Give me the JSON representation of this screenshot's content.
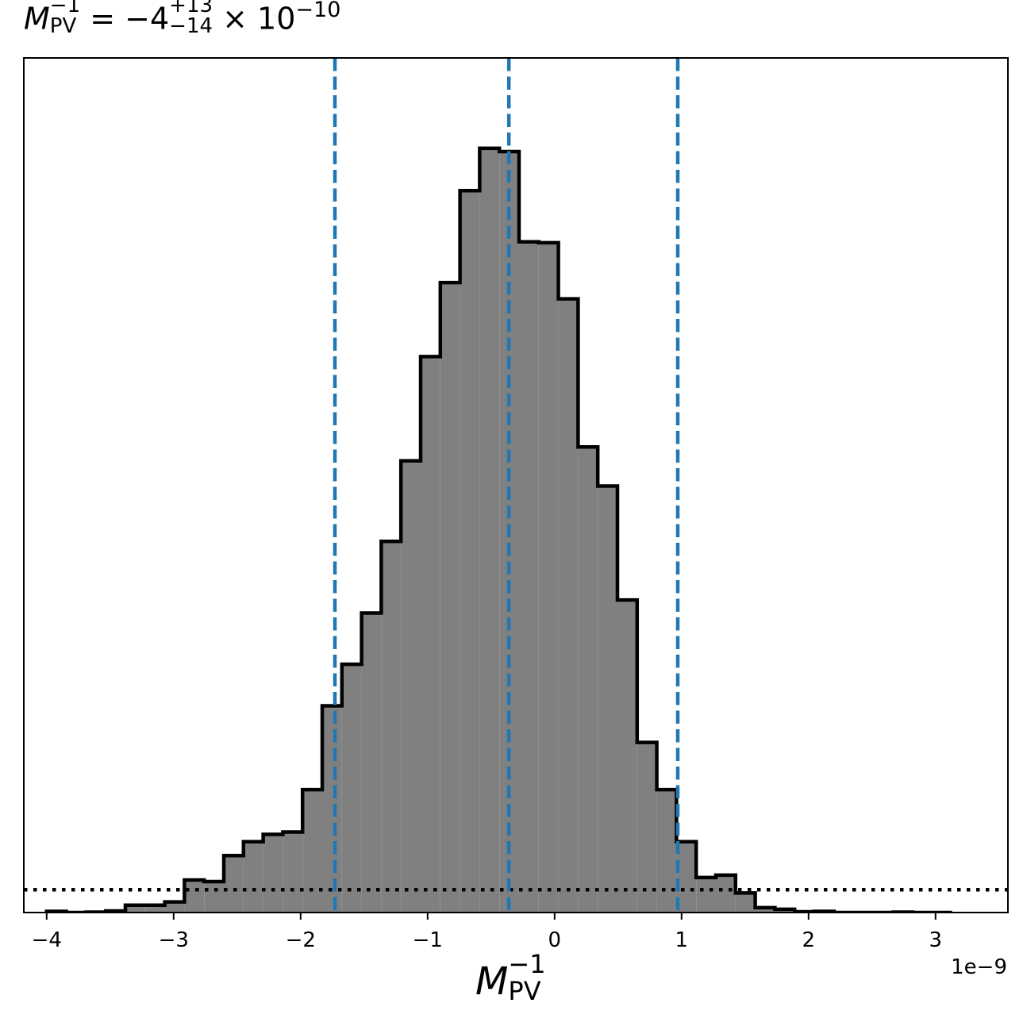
{
  "chart_data": {
    "type": "histogram",
    "title": {
      "symbol": "M",
      "symbol_sub": "PV",
      "symbol_sup": "−1",
      "equals": " = ",
      "value": "−4",
      "upper_err": "+13",
      "lower_err": "−14",
      "times": " × 10",
      "exponent": "−10"
    },
    "xlabel": {
      "symbol": "M",
      "sub": "PV",
      "sup": "−1"
    },
    "x_offset_label": "1e−9",
    "x_unit_scale": 1e-09,
    "xlim": [
      -4.18,
      3.57
    ],
    "ylim": [
      0,
      1.05
    ],
    "xticks": [
      -4,
      -3,
      -2,
      -1,
      0,
      1,
      2,
      3
    ],
    "xtick_labels": [
      "−4",
      "−3",
      "−2",
      "−1",
      "0",
      "1",
      "2",
      "3"
    ],
    "bin_edges": [
      -4.0,
      -3.845,
      -3.69,
      -3.535,
      -3.38,
      -3.225,
      -3.07,
      -2.915,
      -2.76,
      -2.605,
      -2.45,
      -2.295,
      -2.14,
      -1.985,
      -1.83,
      -1.675,
      -1.52,
      -1.365,
      -1.21,
      -1.055,
      -0.9,
      -0.745,
      -0.59,
      -0.435,
      -0.28,
      -0.125,
      0.03,
      0.185,
      0.34,
      0.495,
      0.65,
      0.805,
      0.96,
      1.115,
      1.27,
      1.425,
      1.58,
      1.735,
      1.89,
      2.045,
      2.2,
      2.355,
      2.51,
      2.665,
      2.82,
      2.975,
      3.13
    ],
    "counts": [
      0.0015,
      0.0,
      0.0005,
      0.002,
      0.009,
      0.009,
      0.013,
      0.04,
      0.038,
      0.07,
      0.087,
      0.096,
      0.099,
      0.151,
      0.254,
      0.305,
      0.368,
      0.456,
      0.555,
      0.683,
      0.774,
      0.887,
      0.939,
      0.935,
      0.824,
      0.823,
      0.754,
      0.572,
      0.524,
      0.384,
      0.209,
      0.151,
      0.087,
      0.043,
      0.046,
      0.024,
      0.006,
      0.004,
      0.001,
      0.0015,
      0.0,
      0.0,
      0.0,
      0.0005,
      0.0,
      0.0
    ],
    "bin_values": [
      0.0015,
      0.0,
      0.0005,
      0.002,
      0.009,
      0.009,
      0.013,
      0.04,
      0.038,
      0.07,
      0.087,
      0.096,
      0.099,
      0.151,
      0.254,
      0.305,
      0.368,
      0.456,
      0.555,
      0.683,
      0.774,
      0.887,
      0.939,
      0.935,
      0.824,
      0.823,
      0.754,
      0.572,
      0.524,
      0.384,
      0.209,
      0.151,
      0.087,
      0.043,
      0.046,
      0.024,
      0.006,
      0.004,
      0.001,
      0.0015,
      0.0,
      0.0,
      0.0,
      0.0005,
      0.0,
      0.0
    ],
    "quantile_lines": [
      -1.73,
      -0.36,
      0.97
    ],
    "prior_level": 0.028,
    "colors": {
      "fill": "#808080",
      "edge": "#000000",
      "quantile": "#1f77b4",
      "prior": "#000000"
    }
  }
}
